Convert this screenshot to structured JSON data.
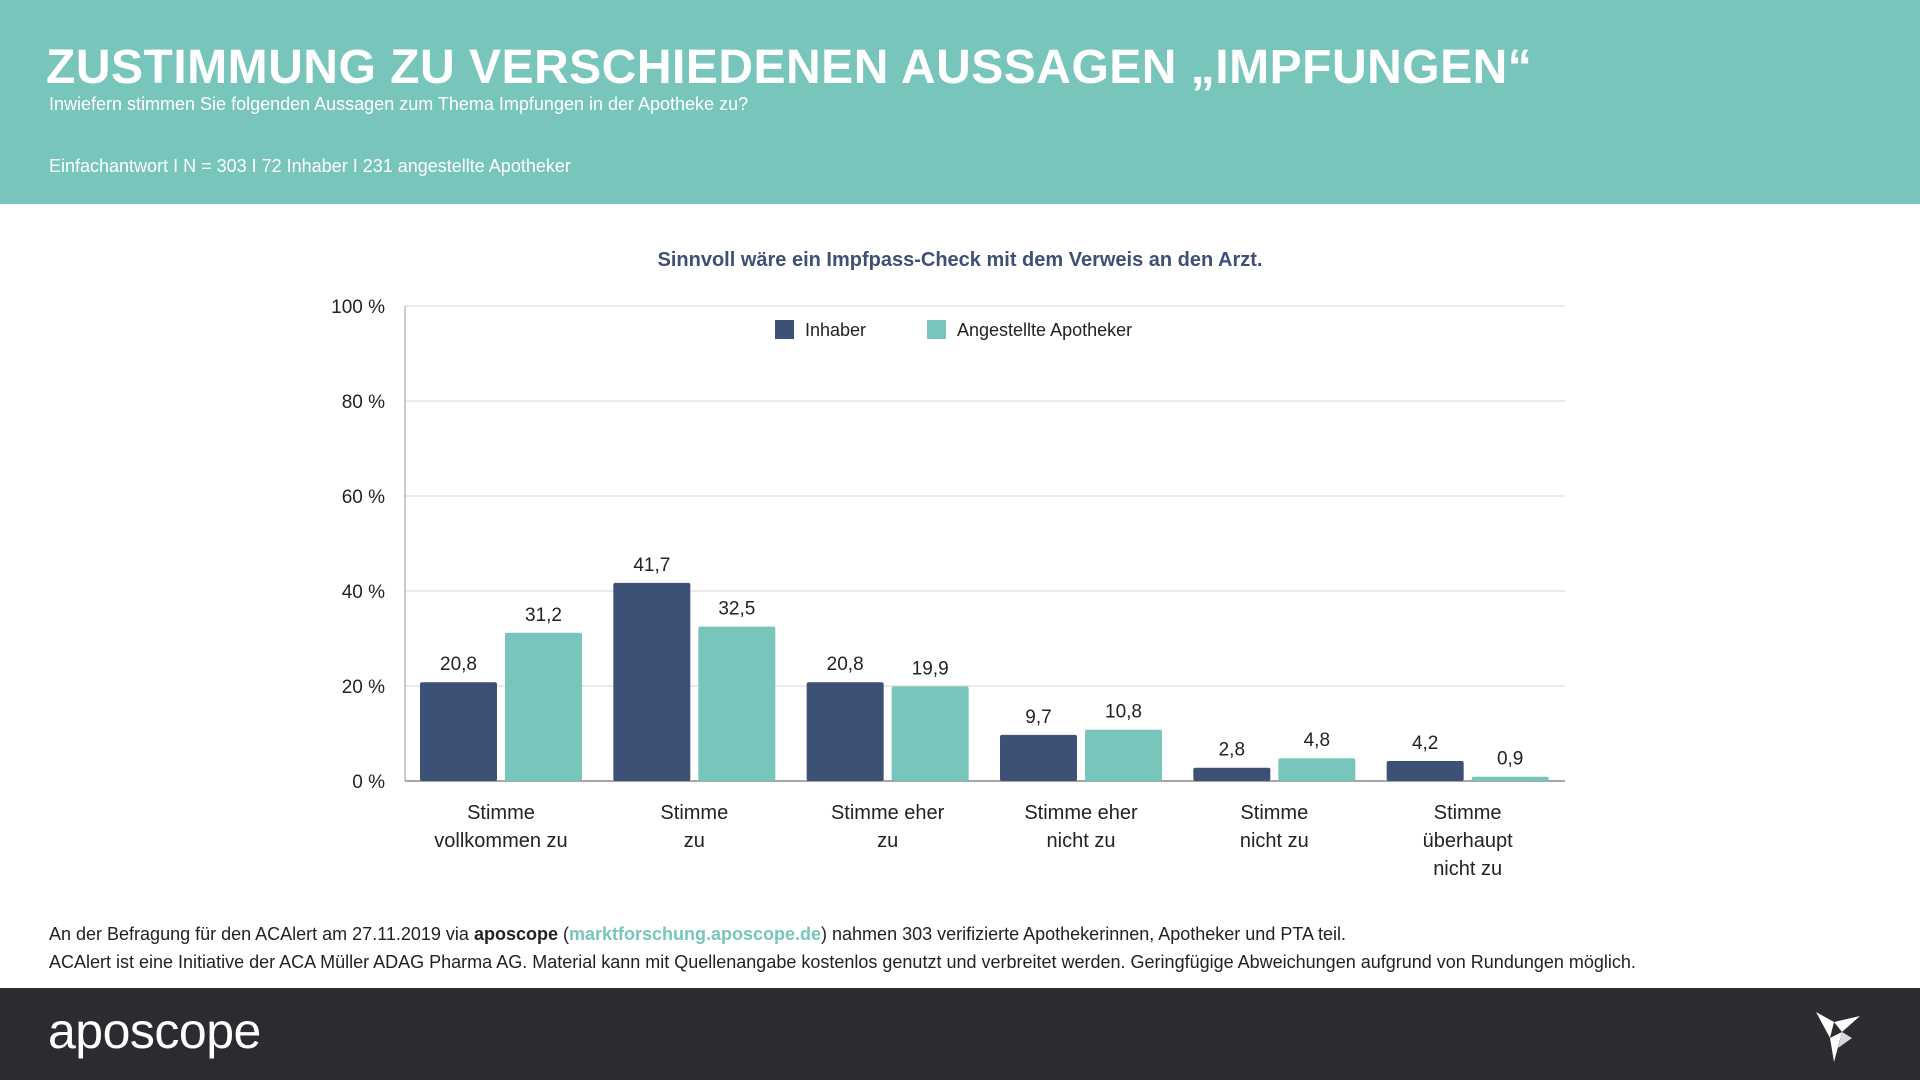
{
  "header": {
    "title": "ZUSTIMMUNG ZU VERSCHIEDENEN AUSSAGEN „IMPFUNGEN“",
    "subtitle": "Inwiefern stimmen Sie folgenden Aussagen zum Thema Impfungen in der Apotheke zu?",
    "sample": "Einfachantwort I N = 303 I 72 Inhaber I 231 angestellte Apotheker"
  },
  "colors": {
    "accent": "#78c5bc",
    "inhaber": "#3d5076",
    "angestellte": "#78c5bc",
    "footer_bg": "#2b2c30",
    "chart_title": "#3d5076"
  },
  "chart_data": {
    "type": "bar",
    "title": "Sinnvoll wäre ein Impfpass-Check mit dem Verweis an den Arzt.",
    "categories": [
      [
        "Stimme",
        "vollkommen zu"
      ],
      [
        "Stimme",
        "zu"
      ],
      [
        "Stimme eher",
        "zu"
      ],
      [
        "Stimme eher",
        "nicht zu"
      ],
      [
        "Stimme",
        "nicht zu"
      ],
      [
        "Stimme",
        "überhaupt",
        "nicht zu"
      ]
    ],
    "series": [
      {
        "name": "Inhaber",
        "values": [
          20.8,
          41.7,
          20.8,
          9.7,
          2.8,
          4.2
        ],
        "labels": [
          "20,8",
          "41,7",
          "20,8",
          "9,7",
          "2,8",
          "4,2"
        ],
        "color": "#3d5076"
      },
      {
        "name": "Angestellte Apotheker",
        "values": [
          31.2,
          32.5,
          19.9,
          10.8,
          4.8,
          0.9
        ],
        "labels": [
          "31,2",
          "32,5",
          "19,9",
          "10,8",
          "4,8",
          "0,9"
        ],
        "color": "#78c5bc"
      }
    ],
    "ylim": [
      0,
      100
    ],
    "yticks": [
      0,
      20,
      40,
      60,
      80,
      100
    ],
    "ytick_labels": [
      "0 %",
      "20 %",
      "40 %",
      "60 %",
      "80 %",
      "100 %"
    ],
    "grid": true,
    "legend_position": "top-center"
  },
  "footer": {
    "note_prefix": "An der Befragung für den ACAlert am 27.11.2019 via ",
    "note_brand": "aposcope",
    "note_open": " (",
    "note_link": "marktforschung.aposcope.de",
    "note_suffix": ") nahmen 303 verifizierte Apothekerinnen, Apotheker und PTA teil.",
    "note_line2": "ACAlert ist eine Initiative der ACA Müller ADAG Pharma AG. Material kann mit Quellenangabe kostenlos genutzt und verbreitet werden. Geringfügige Abweichungen aufgrund von Rundungen möglich.",
    "logo_text": "aposcope",
    "bird_icon": "origami-bird-icon"
  }
}
